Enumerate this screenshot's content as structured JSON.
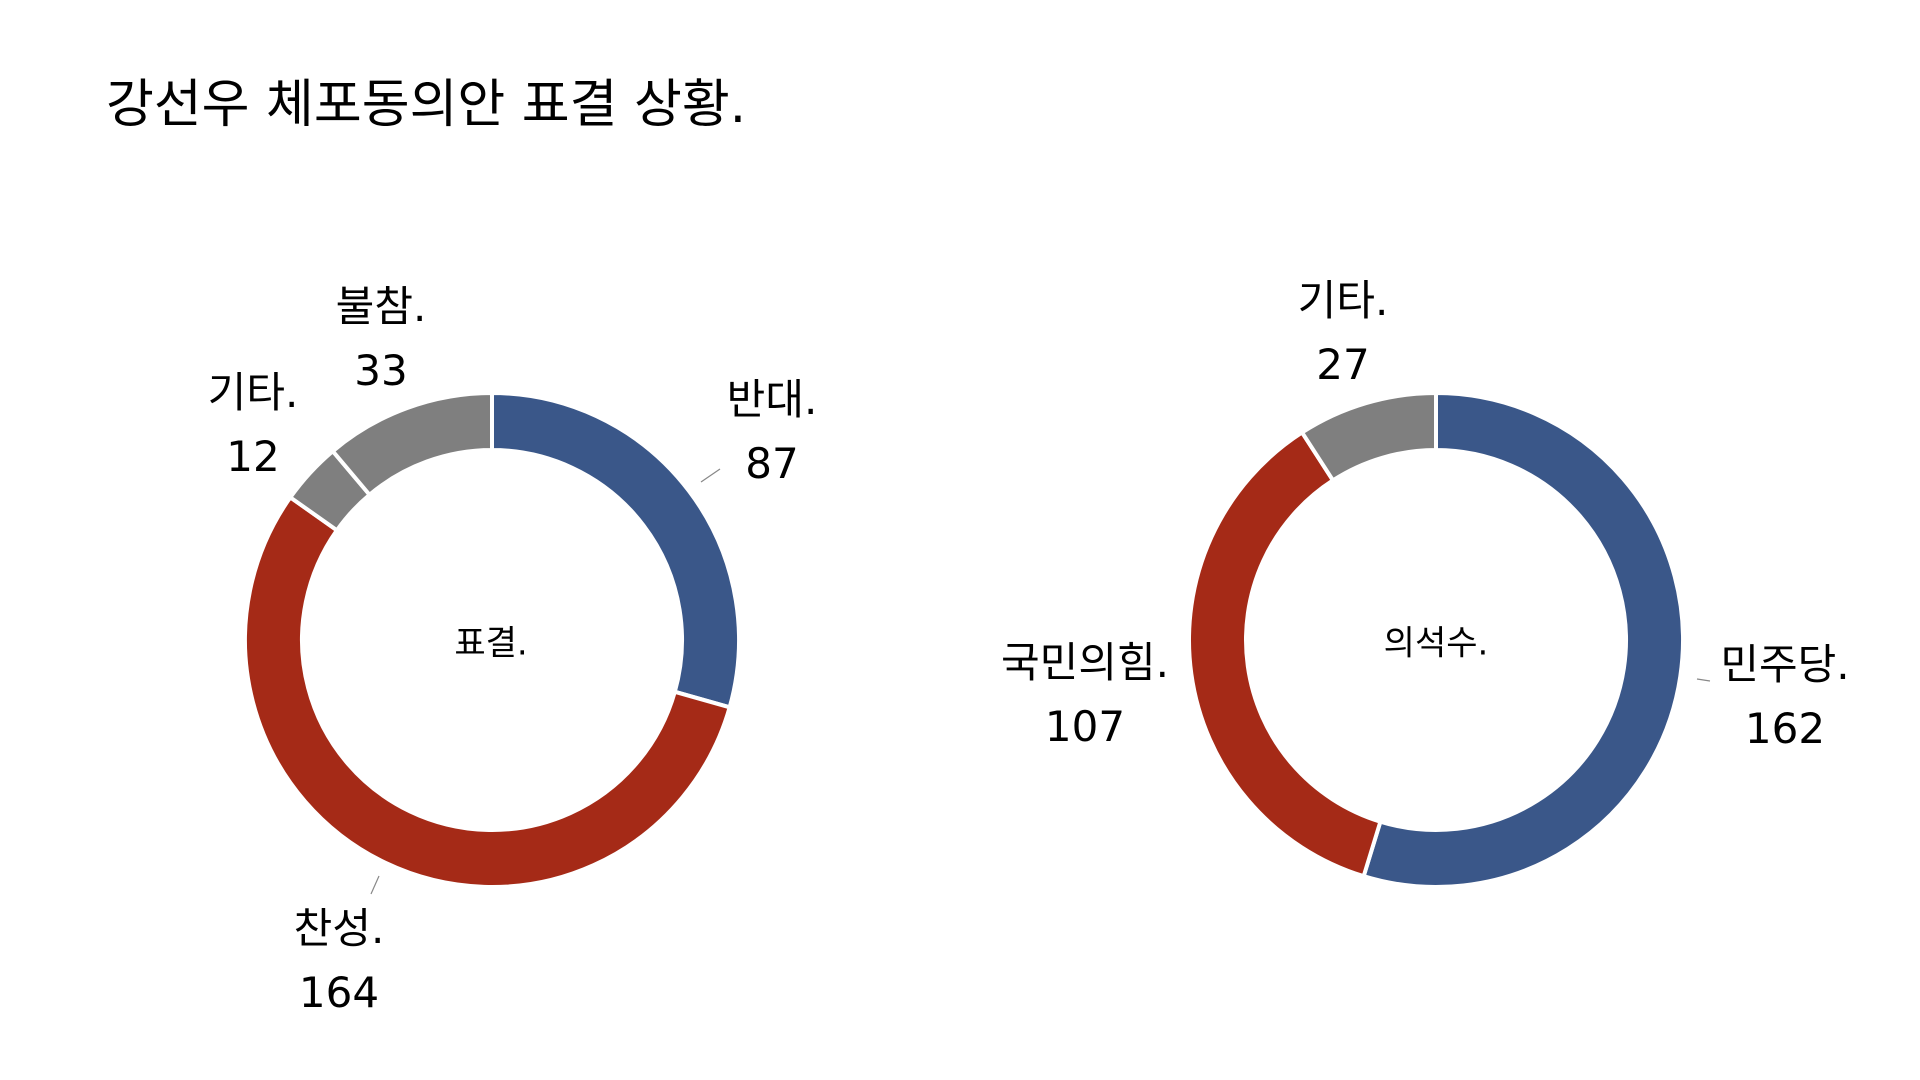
{
  "title": "강선우 체포동의안 표결 상황.",
  "colors": {
    "blue": "#3A5789",
    "red": "#A52A17",
    "gray": "#7F7F7F"
  },
  "chart_data": [
    {
      "type": "pie",
      "variant": "donut",
      "center_label": "표결.",
      "start": "top",
      "direction": "clockwise",
      "slices": [
        {
          "label": "반대.",
          "value": 87,
          "color": "#3A5789"
        },
        {
          "label": "찬성.",
          "value": 164,
          "color": "#A52A17"
        },
        {
          "label": "기타.",
          "value": 12,
          "color": "#7F7F7F"
        },
        {
          "label": "불참.",
          "value": 33,
          "color": "#7F7F7F"
        }
      ]
    },
    {
      "type": "pie",
      "variant": "donut",
      "center_label": "의석수.",
      "start": "top",
      "direction": "clockwise",
      "slices": [
        {
          "label": "민주당.",
          "value": 162,
          "color": "#3A5789"
        },
        {
          "label": "국민의힘.",
          "value": 107,
          "color": "#A52A17"
        },
        {
          "label": "기타.",
          "value": 27,
          "color": "#7F7F7F"
        }
      ]
    }
  ]
}
